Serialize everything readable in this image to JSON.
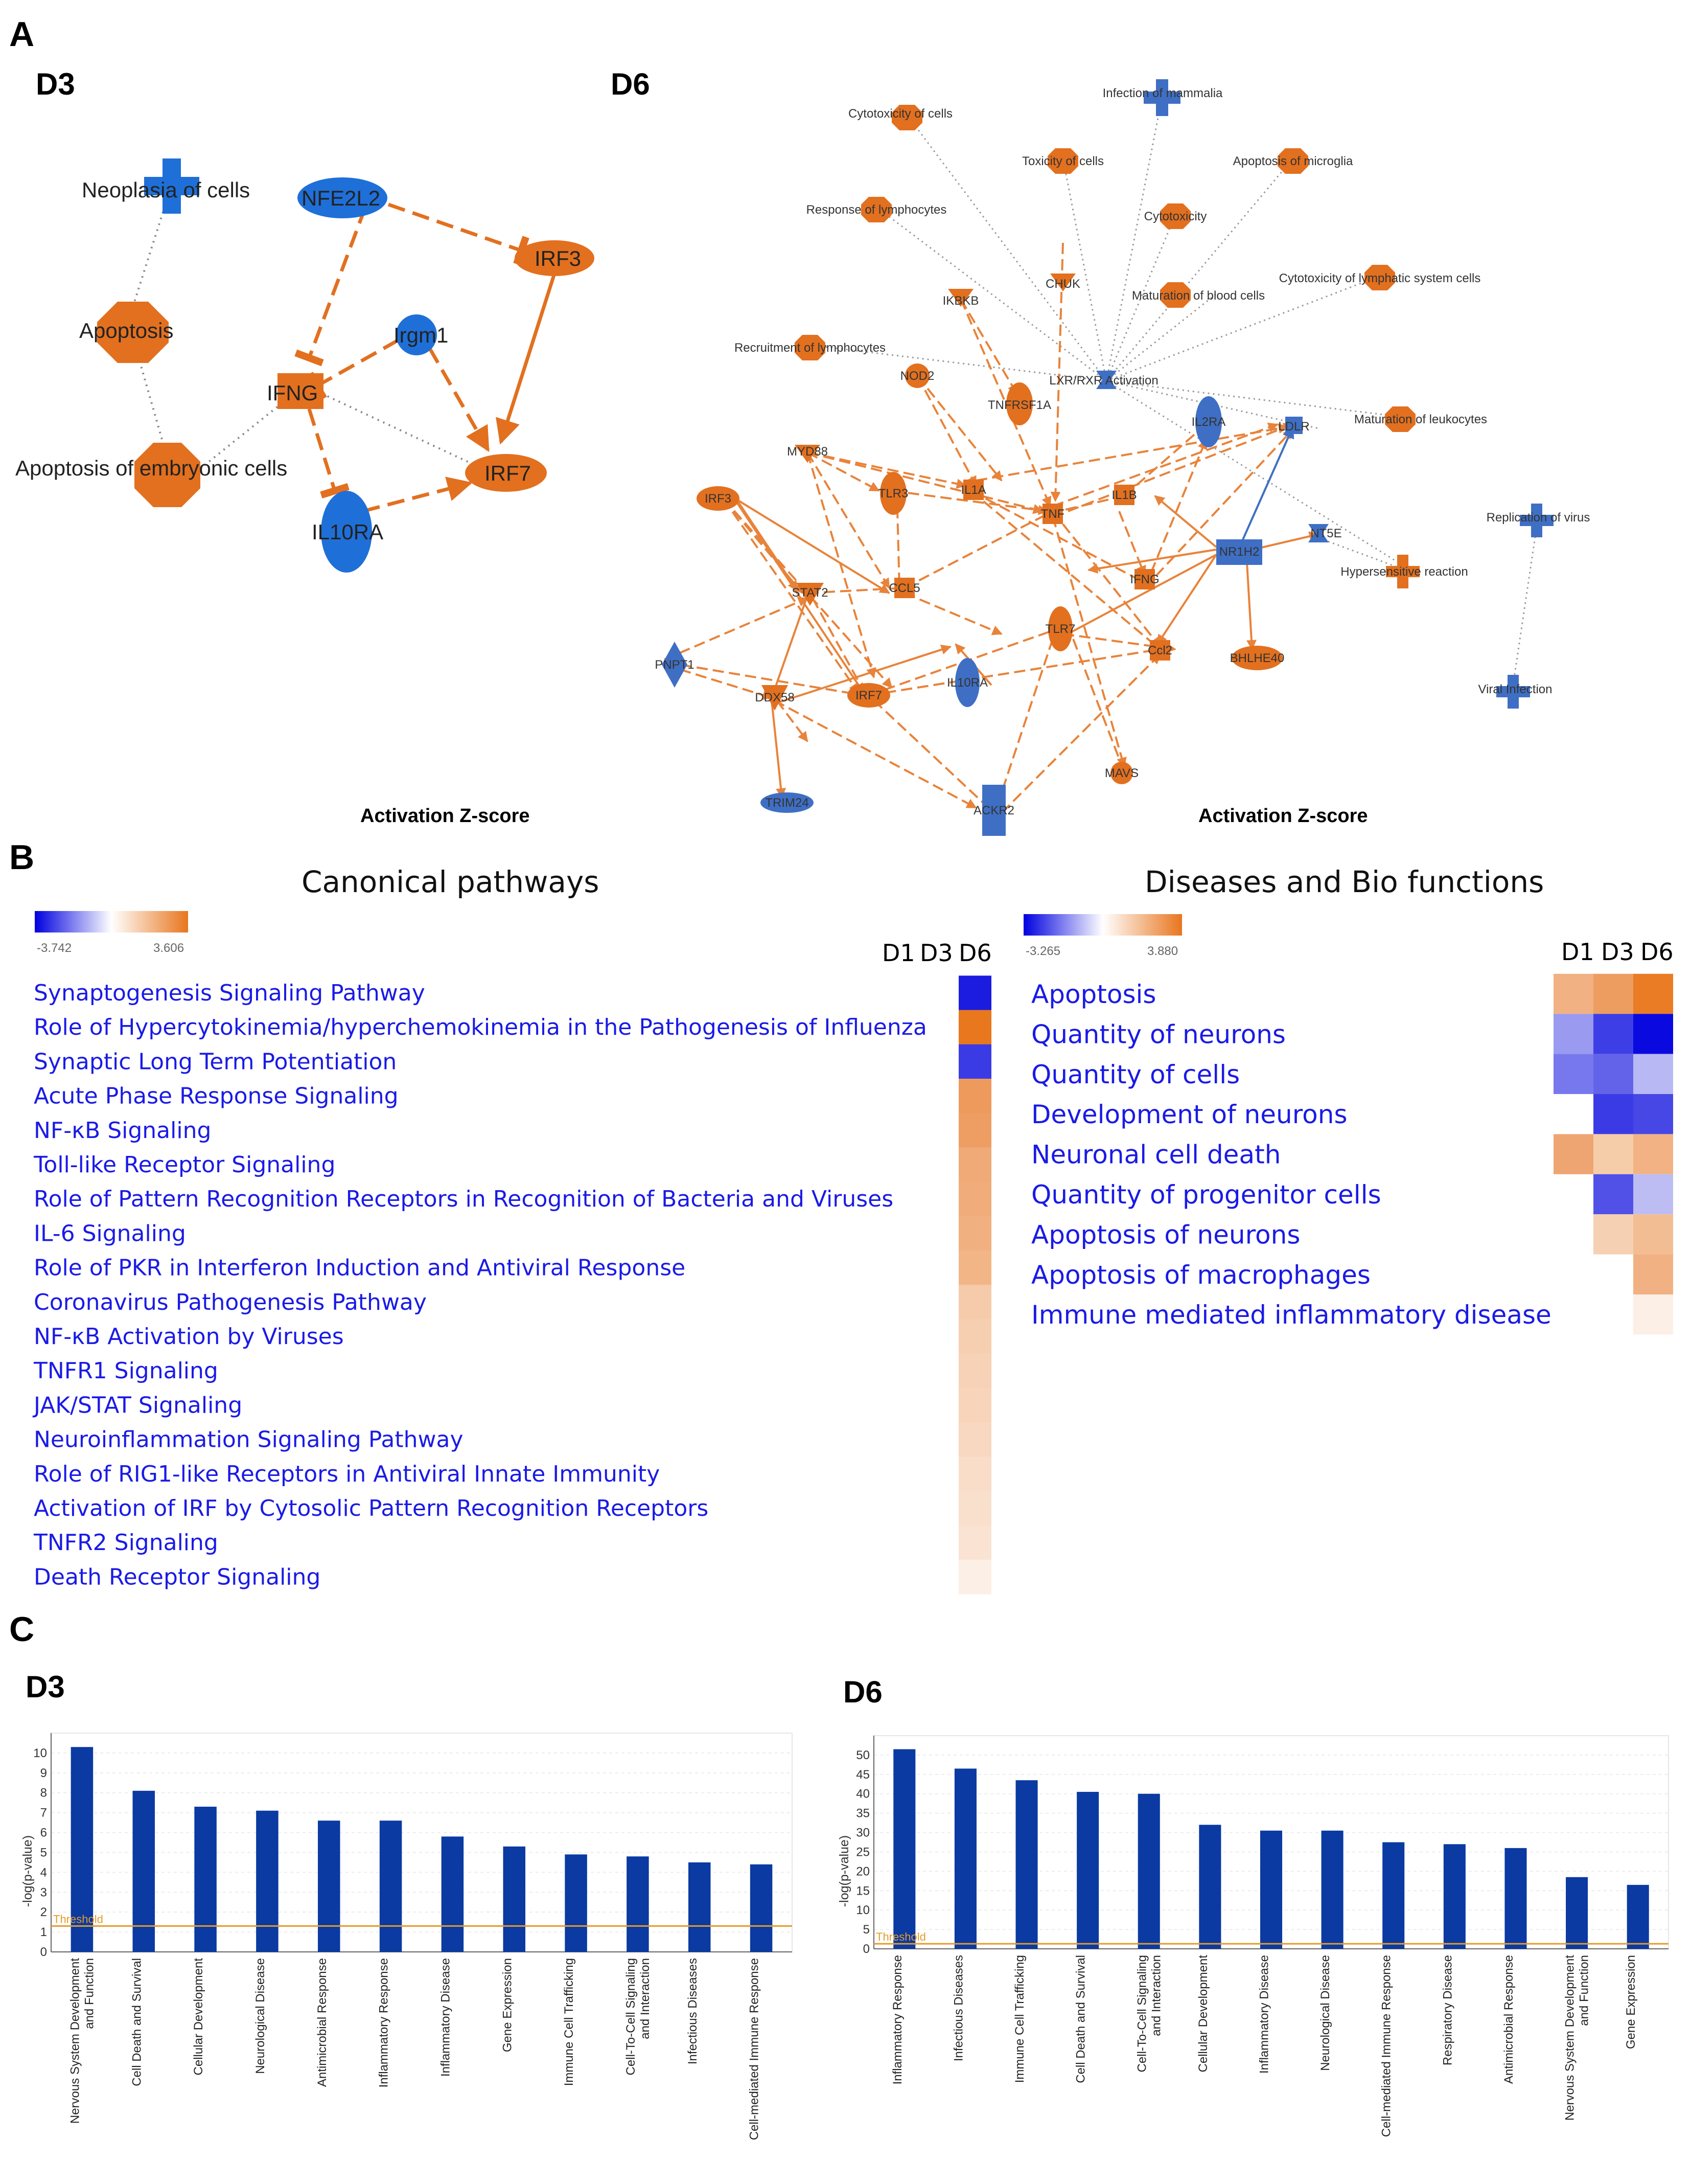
{
  "panel_labels": {
    "a": "A",
    "b": "B",
    "c": "C"
  },
  "panel_a": {
    "d3": {
      "title": "D3",
      "zscore_label": "Activation Z-score",
      "nodes": [
        {
          "label": "Neoplasia of cells",
          "color": "#1f6fd8"
        },
        {
          "label": "NFE2L2",
          "color": "#1f6fd8"
        },
        {
          "label": "IRF3",
          "color": "#e2701f"
        },
        {
          "label": "Apoptosis",
          "color": "#e2701f"
        },
        {
          "label": "Irgm1",
          "color": "#1f6fd8"
        },
        {
          "label": "IFNG",
          "color": "#e2701f"
        },
        {
          "label": "Apoptosis of embryonic cells",
          "color": "#e2701f"
        },
        {
          "label": "IRF7",
          "color": "#e2701f"
        },
        {
          "label": "IL10RA",
          "color": "#1f6fd8"
        }
      ]
    },
    "d6": {
      "title": "D6",
      "zscore_label": "Activation Z-score",
      "nodes": [
        {
          "label": "Cytotoxicity of cells"
        },
        {
          "label": "Infection of mammalia"
        },
        {
          "label": "Toxicity of cells"
        },
        {
          "label": "Apoptosis of microglia"
        },
        {
          "label": "Response of lymphocytes"
        },
        {
          "label": "Cytotoxicity"
        },
        {
          "label": "Cytotoxicity of lymphatic system cells"
        },
        {
          "label": "IKBKB"
        },
        {
          "label": "CHUK"
        },
        {
          "label": "Maturation of blood cells"
        },
        {
          "label": "Recruitment of lymphocytes"
        },
        {
          "label": "NOD2"
        },
        {
          "label": "LXR/RXR Activation"
        },
        {
          "label": "TNFRSF1A"
        },
        {
          "label": "IL2RA"
        },
        {
          "label": "LDLR"
        },
        {
          "label": "Maturation of leukocytes"
        },
        {
          "label": "MYD88"
        },
        {
          "label": "IRF3"
        },
        {
          "label": "TLR3"
        },
        {
          "label": "IL1A"
        },
        {
          "label": "IL1B"
        },
        {
          "label": "TNF"
        },
        {
          "label": "Replication of virus"
        },
        {
          "label": "NR1H2"
        },
        {
          "label": "NT5E"
        },
        {
          "label": "Hypersensitive reaction"
        },
        {
          "label": "STAT2"
        },
        {
          "label": "CCL5"
        },
        {
          "label": "IFNG"
        },
        {
          "label": "TLR7"
        },
        {
          "label": "Ccl2"
        },
        {
          "label": "BHLHE40"
        },
        {
          "label": "PNPT1"
        },
        {
          "label": "DDX58"
        },
        {
          "label": "IRF7"
        },
        {
          "label": "IL10RA"
        },
        {
          "label": "Viral Infection"
        },
        {
          "label": "MAVS"
        },
        {
          "label": "TRIM24"
        },
        {
          "label": "ACKR2"
        }
      ]
    }
  },
  "panel_b": {
    "canonical": {
      "title": "Canonical pathways",
      "legend_min": "-3.742",
      "legend_max": "3.606",
      "columns": [
        "D1",
        "D3",
        "D6"
      ],
      "items": [
        {
          "label": "Synaptogenesis Signaling Pathway",
          "d6_color": "#1c1ce0"
        },
        {
          "label": "Role of Hypercytokinemia/hyperchemokinemia in the Pathogenesis of Influenza",
          "d6_color": "#e8771e"
        },
        {
          "label": "Synaptic Long Term Potentiation",
          "d6_color": "#3b3be6"
        },
        {
          "label": "Acute Phase Response Signaling",
          "d6_color": "#ee9a5c"
        },
        {
          "label": "NF-κB Signaling",
          "d6_color": "#ee9e63"
        },
        {
          "label": "Toll-like Receptor Signaling",
          "d6_color": "#f0aa77"
        },
        {
          "label": "Role of Pattern Recognition Receptors in Recognition of Bacteria and Viruses",
          "d6_color": "#f0ad7b"
        },
        {
          "label": "IL-6 Signaling",
          "d6_color": "#f1b07f"
        },
        {
          "label": "Role of PKR in Interferon Induction and Antiviral Response",
          "d6_color": "#f2b686"
        },
        {
          "label": "Coronavirus Pathogenesis Pathway",
          "d6_color": "#f6cbab"
        },
        {
          "label": "NF-κB Activation by Viruses",
          "d6_color": "#f6ceb0"
        },
        {
          "label": "TNFR1 Signaling",
          "d6_color": "#f7d2b6"
        },
        {
          "label": "JAK/STAT Signaling",
          "d6_color": "#f7d4ba"
        },
        {
          "label": "Neuroinflammation Signaling Pathway",
          "d6_color": "#f8d8c0"
        },
        {
          "label": "Role of RIG1-like Receptors in Antiviral Innate Immunity",
          "d6_color": "#f9ddc8"
        },
        {
          "label": "Activation of IRF by Cytosolic Pattern Recognition Receptors",
          "d6_color": "#f9e0cc"
        },
        {
          "label": "TNFR2 Signaling",
          "d6_color": "#fae3d2"
        },
        {
          "label": "Death Receptor Signaling",
          "d6_color": "#fcefe6"
        }
      ]
    },
    "diseases": {
      "title": "Diseases and Bio functions",
      "legend_min": "-3.265",
      "legend_max": "3.880",
      "columns": [
        "D1",
        "D3",
        "D6"
      ],
      "items": [
        {
          "label": "Apoptosis",
          "cells": [
            "#f1b183",
            "#ee9d61",
            "#e97c25"
          ]
        },
        {
          "label": "Quantity of neurons",
          "cells": [
            "#9a9af0",
            "#3e3ee6",
            "#0a0ae0"
          ]
        },
        {
          "label": "Quantity of cells",
          "cells": [
            "#7878ee",
            "#6363ea",
            "#b8b8f4"
          ]
        },
        {
          "label": "Development of neurons",
          "cells": [
            "",
            "#3b3be6",
            "#4747e6"
          ]
        },
        {
          "label": "Neuronal cell death",
          "cells": [
            "#efa572",
            "#f6cda9",
            "#f2b284"
          ]
        },
        {
          "label": "Quantity of progenitor cells",
          "cells": [
            "",
            "#5151e8",
            "#bdbdf4"
          ]
        },
        {
          "label": "Apoptosis of neurons",
          "cells": [
            "",
            "#f6d0b2",
            "#f3bd93"
          ]
        },
        {
          "label": "Apoptosis of macrophages",
          "cells": [
            "",
            "",
            "#f1b183"
          ]
        },
        {
          "label": "Immune mediated inflammatory disease",
          "cells": [
            "",
            "",
            "#fcefe6"
          ]
        }
      ]
    }
  },
  "chart_data": [
    {
      "type": "bar",
      "title": "D3",
      "ylabel": "-log(p-value)",
      "xlabel": "",
      "ylim": [
        0,
        11
      ],
      "yticks": [
        0,
        1,
        2,
        3,
        4,
        5,
        6,
        7,
        8,
        9,
        10
      ],
      "threshold": 1.3,
      "threshold_label": "Threshold",
      "categories": [
        "Nervous System Development and Function",
        "Cell Death and Survival",
        "Cellular Development",
        "Neurological Disease",
        "Antimicrobial Response",
        "Inflammatory Response",
        "Inflammatory Disease",
        "Gene Expression",
        "Immune Cell Trafficking",
        "Cell-To-Cell Signaling and Interaction",
        "Infectious Diseases",
        "Cell-mediated Immune Response"
      ],
      "values": [
        10.3,
        8.1,
        7.3,
        7.1,
        6.6,
        6.6,
        5.8,
        5.3,
        4.9,
        4.8,
        4.5,
        4.4
      ],
      "bar_color": "#0a3aa2"
    },
    {
      "type": "bar",
      "title": "D6",
      "ylabel": "-log(p-value)",
      "xlabel": "",
      "ylim": [
        0,
        55
      ],
      "yticks": [
        0,
        5,
        10,
        15,
        20,
        25,
        30,
        35,
        40,
        45,
        50
      ],
      "threshold": 1.3,
      "threshold_label": "Threshold",
      "categories": [
        "Inflammatory Response",
        "Infectious Diseases",
        "Immune Cell Trafficking",
        "Cell Death and Survival",
        "Cell-To-Cell Signaling and Interaction",
        "Cellular Development",
        "Inflammatory Disease",
        "Neurological Disease",
        "Cell-mediated Immune Response",
        "Respiratory Disease",
        "Antimicrobial Response",
        "Nervous System Development and Function",
        "Gene Expression"
      ],
      "values": [
        51.5,
        46.5,
        43.5,
        40.5,
        40.0,
        32.0,
        30.5,
        30.5,
        27.5,
        27.0,
        26.0,
        18.5,
        16.5
      ],
      "bar_color": "#0a3aa2"
    }
  ]
}
